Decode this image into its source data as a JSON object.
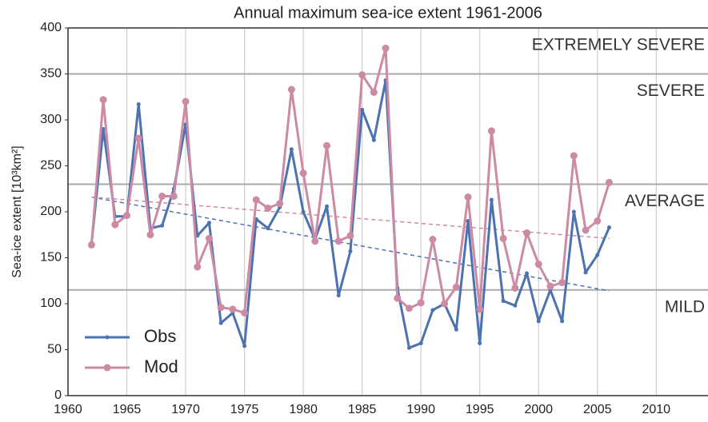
{
  "chart_data": {
    "type": "line",
    "title": "Annual maximum sea-ice extent 1961-2006",
    "y_label": "Sea-ice extent [10³km²]",
    "x": [
      1962,
      1963,
      1964,
      1965,
      1966,
      1967,
      1968,
      1969,
      1970,
      1971,
      1972,
      1973,
      1974,
      1975,
      1976,
      1977,
      1978,
      1979,
      1980,
      1981,
      1982,
      1983,
      1984,
      1985,
      1986,
      1987,
      1988,
      1989,
      1990,
      1991,
      1992,
      1993,
      1994,
      1995,
      1996,
      1997,
      1998,
      1999,
      2000,
      2001,
      2002,
      2003,
      2004,
      2005,
      2006
    ],
    "series": [
      {
        "name": "Obs",
        "color": "#4c72b0",
        "values": [
          165,
          290,
          195,
          195,
          317,
          182,
          185,
          225,
          295,
          174,
          188,
          79,
          90,
          54,
          192,
          182,
          205,
          268,
          200,
          170,
          206,
          109,
          157,
          311,
          278,
          343,
          117,
          52,
          57,
          93,
          100,
          72,
          190,
          57,
          213,
          103,
          98,
          133,
          81,
          115,
          81,
          200,
          134,
          153,
          183
        ],
        "trend": {
          "x": [
            1962,
            2006
          ],
          "values": [
            216,
            114
          ]
        }
      },
      {
        "name": "Mod",
        "color": "#cc8aa4",
        "values": [
          164,
          322,
          186,
          196,
          280,
          175,
          217,
          217,
          320,
          140,
          171,
          96,
          94,
          90,
          213,
          204,
          209,
          333,
          242,
          168,
          272,
          168,
          174,
          349,
          330,
          378,
          106,
          95,
          101,
          170,
          100,
          118,
          216,
          94,
          288,
          171,
          117,
          177,
          143,
          119,
          123,
          261,
          180,
          190,
          232
        ],
        "trend": {
          "x": [
            1962,
            2006
          ],
          "values": [
            216,
            171
          ]
        }
      }
    ],
    "thresholds": [
      350,
      230,
      115
    ],
    "zone_labels": [
      "EXTREMELY SEVERE",
      "SEVERE",
      "AVERAGE",
      "MILD"
    ],
    "xlim": [
      1960,
      2014.4
    ],
    "ylim": [
      0,
      400
    ],
    "xticks": [
      1960,
      1965,
      1970,
      1975,
      1980,
      1985,
      1990,
      1995,
      2000,
      2005,
      2010
    ],
    "yticks": [
      0,
      50,
      100,
      150,
      200,
      250,
      300,
      350,
      400
    ],
    "grid": true,
    "legend": "lower-left"
  }
}
